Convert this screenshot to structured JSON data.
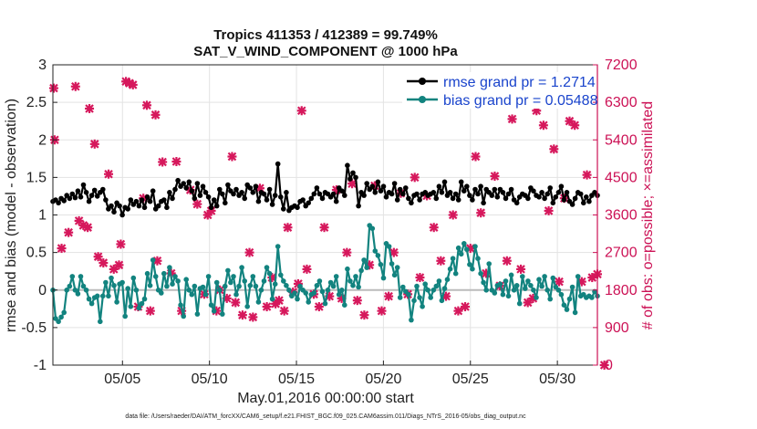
{
  "chart_data": {
    "type": "line",
    "title": "Tropics 411353 / 412389 = 99.749%",
    "subtitle": "SAT_V_WIND_COMPONENT @ 1000 hPa",
    "xlabel": "May.01,2016 00:00:00 start",
    "ylabel": "rmse and bias (model - observation)",
    "ylabel_right": "# of obs: o=possible; ×=assimilated",
    "footer": "data file: /Users/raeder/DAI/ATM_forcXX/CAM6_setup/f.e21.FHIST_BGC.f09_025.CAM6assim.011/Diags_NTrS_2016-05/obs_diag_output.nc",
    "ylim": [
      -1,
      3
    ],
    "ylim_right": [
      0,
      7200
    ],
    "xlim": [
      1,
      32.3
    ],
    "grid": true,
    "legend_position": "top-right",
    "x_ticks": [
      {
        "x": 5,
        "label": "05/05"
      },
      {
        "x": 10,
        "label": "05/10"
      },
      {
        "x": 15,
        "label": "05/15"
      },
      {
        "x": 20,
        "label": "05/20"
      },
      {
        "x": 25,
        "label": "05/25"
      },
      {
        "x": 30,
        "label": "05/30"
      }
    ],
    "y_ticks": [
      -1,
      -0.5,
      0,
      0.5,
      1,
      1.5,
      2,
      2.5,
      3
    ],
    "y_ticks_right": [
      0,
      900,
      1800,
      2700,
      3600,
      4500,
      5400,
      6300,
      7200
    ],
    "colors": {
      "rmse": "#000000",
      "bias": "#12837f",
      "obs": "#d6185c",
      "zero_line": "#bbbbbb",
      "right_axis": "#cc1155"
    },
    "series": [
      {
        "name": "rmse grand pr = 1.2714",
        "color": "#000000",
        "values": [
          1.18,
          1.2,
          1.16,
          1.22,
          1.19,
          1.26,
          1.22,
          1.28,
          1.23,
          1.32,
          1.24,
          1.4,
          1.3,
          1.18,
          1.26,
          1.33,
          1.25,
          1.3,
          1.34,
          1.2,
          1.08,
          1.12,
          1.04,
          1.16,
          1.12,
          1.0,
          1.1,
          1.08,
          1.2,
          1.14,
          1.18,
          1.12,
          1.2,
          1.1,
          1.24,
          1.18,
          1.32,
          1.08,
          1.12,
          1.18,
          1.2,
          1.1,
          1.3,
          1.22,
          1.34,
          1.46,
          1.38,
          1.42,
          1.36,
          1.44,
          1.32,
          1.22,
          1.42,
          1.26,
          1.38,
          1.3,
          1.24,
          1.1,
          1.2,
          1.12,
          1.34,
          1.28,
          1.16,
          1.4,
          1.32,
          1.28,
          1.34,
          1.26,
          1.3,
          1.22,
          1.4,
          1.36,
          1.3,
          1.38,
          1.18,
          1.3,
          1.28,
          1.2,
          1.34,
          1.14,
          1.26,
          1.68,
          1.24,
          1.08,
          1.3,
          1.06,
          1.1,
          1.12,
          1.1,
          1.18,
          1.2,
          1.12,
          1.16,
          1.22,
          1.28,
          1.36,
          1.28,
          1.22,
          1.3,
          1.28,
          1.24,
          1.28,
          1.18,
          1.36,
          1.32,
          1.26,
          1.66,
          1.48,
          1.56,
          1.5,
          1.12,
          1.3,
          1.26,
          1.42,
          1.34,
          1.38,
          1.3,
          1.44,
          1.32,
          1.38,
          1.24,
          1.3,
          1.28,
          1.42,
          1.2,
          1.34,
          1.28,
          1.36,
          1.22,
          1.16,
          1.26,
          1.28,
          1.2,
          1.28,
          1.3,
          1.26,
          1.28,
          1.3,
          1.22,
          1.38,
          1.3,
          1.44,
          1.26,
          1.3,
          1.22,
          1.28,
          1.2,
          1.44,
          1.32,
          1.38,
          1.26,
          1.2,
          1.34,
          1.28,
          1.38,
          1.16,
          1.34,
          1.3,
          1.26,
          1.34,
          1.24,
          1.34,
          1.3,
          1.22,
          1.28,
          1.34,
          1.2,
          1.16,
          1.24,
          1.28,
          1.26,
          1.22,
          1.36,
          1.32,
          1.26,
          1.24,
          1.3,
          1.22,
          1.28,
          1.36,
          1.16,
          1.24,
          1.3,
          1.38,
          1.2,
          1.3,
          1.18,
          1.14,
          1.22,
          1.3,
          1.28,
          1.16,
          1.24,
          1.18,
          1.26,
          1.3,
          1.26
        ]
      },
      {
        "name": "bias grand pr = 0.05488",
        "color": "#12837f",
        "values": [
          0.0,
          -0.38,
          -0.42,
          -0.36,
          -0.3,
          0.0,
          0.05,
          0.18,
          0.0,
          -0.05,
          0.18,
          0.05,
          0.0,
          -0.12,
          -0.18,
          -0.1,
          -0.08,
          -0.42,
          -0.08,
          0.1,
          -0.08,
          0.16,
          0.06,
          -0.16,
          0.08,
          0.1,
          -0.35,
          0.02,
          -0.22,
          0.16,
          0.0,
          -0.24,
          -0.18,
          -0.12,
          0.22,
          0.06,
          0.4,
          0.18,
          0.0,
          -0.04,
          0.22,
          0.05,
          0.3,
          0.08,
          0.18,
          0.12,
          -0.2,
          -0.35,
          0.14,
          0.0,
          -0.06,
          0.05,
          -0.32,
          0.02,
          0.04,
          -0.06,
          0.18,
          -0.2,
          -0.28,
          0.1,
          0.0,
          -0.32,
          0.05,
          0.26,
          0.1,
          0.18,
          -0.06,
          0.05,
          0.3,
          0.12,
          -0.22,
          0.06,
          0.18,
          0.05,
          -0.16,
          0.0,
          0.12,
          0.3,
          0.22,
          -0.12,
          0.08,
          0.58,
          0.2,
          0.12,
          0.06,
          0.0,
          -0.08,
          -0.04,
          -0.12,
          0.05,
          0.0,
          -0.04,
          -0.16,
          -0.06,
          -0.04,
          0.06,
          0.12,
          -0.02,
          -0.18,
          0.0,
          0.1,
          0.05,
          0.18,
          -0.06,
          0.0,
          -0.2,
          0.28,
          0.12,
          0.06,
          0.18,
          0.04,
          0.26,
          0.4,
          0.3,
          0.86,
          0.82,
          0.52,
          0.46,
          0.34,
          0.16,
          0.62,
          0.58,
          0.35,
          0.2,
          0.3,
          -0.1,
          0.04,
          -0.02,
          -0.06,
          -0.4,
          -0.14,
          0.05,
          -0.1,
          -0.22,
          0.08,
          0.0,
          -0.1,
          0.0,
          0.05,
          0.12,
          -0.14,
          0.02,
          0.14,
          0.28,
          0.42,
          0.22,
          0.56,
          0.48,
          0.62,
          0.54,
          0.34,
          0.28,
          0.58,
          0.42,
          0.22,
          0.1,
          0.0,
          0.35,
          0.0,
          -0.04,
          0.06,
          0.08,
          -0.06,
          0.12,
          -0.08,
          0.2,
          0.0,
          0.06,
          -0.18,
          0.18,
          0.02,
          0.12,
          0.06,
          0.0,
          -0.1,
          0.14,
          0.05,
          0.18,
          0.0,
          -0.12,
          0.16,
          0.04,
          0.0,
          -0.06,
          -0.2,
          -0.26,
          -0.12,
          0.04,
          -0.3,
          0.18,
          -0.08,
          -0.06,
          -0.1,
          -0.08,
          -0.1,
          -0.02,
          -0.08
        ]
      }
    ],
    "obs_points": [
      [
        1.05,
        6640
      ],
      [
        1.1,
        5400
      ],
      [
        1.5,
        2800
      ],
      [
        1.9,
        3180
      ],
      [
        2.3,
        6680
      ],
      [
        2.5,
        3460
      ],
      [
        2.75,
        3350
      ],
      [
        3,
        3300
      ],
      [
        3.1,
        6150
      ],
      [
        3.4,
        5300
      ],
      [
        3.6,
        2600
      ],
      [
        3.9,
        2450
      ],
      [
        4.2,
        4580
      ],
      [
        4.5,
        2300
      ],
      [
        4.8,
        2400
      ],
      [
        4.9,
        2900
      ],
      [
        5.2,
        6800
      ],
      [
        5.4,
        6760
      ],
      [
        5.6,
        6720
      ],
      [
        5.9,
        1400
      ],
      [
        6.2,
        4000
      ],
      [
        6.4,
        6230
      ],
      [
        6.6,
        1300
      ],
      [
        6.9,
        6000
      ],
      [
        7,
        2500
      ],
      [
        7.3,
        4870
      ],
      [
        7.8,
        2200
      ],
      [
        8.1,
        4880
      ],
      [
        8.4,
        1300
      ],
      [
        8.9,
        4200
      ],
      [
        9.3,
        3860
      ],
      [
        9.7,
        1700
      ],
      [
        9.9,
        3600
      ],
      [
        10.1,
        3700
      ],
      [
        10.4,
        1300
      ],
      [
        10.6,
        1800
      ],
      [
        11,
        1600
      ],
      [
        11.3,
        5000
      ],
      [
        11.5,
        1500
      ],
      [
        11.9,
        1200
      ],
      [
        12.3,
        2700
      ],
      [
        12.5,
        1150
      ],
      [
        12.9,
        4240
      ],
      [
        13.3,
        1400
      ],
      [
        13.6,
        2100
      ],
      [
        13.8,
        1470
      ],
      [
        14,
        1550
      ],
      [
        14.3,
        1300
      ],
      [
        14.5,
        3300
      ],
      [
        14.8,
        1750
      ],
      [
        15.1,
        1950
      ],
      [
        15.3,
        6100
      ],
      [
        15.6,
        2300
      ],
      [
        16,
        1700
      ],
      [
        16.3,
        1400
      ],
      [
        16.6,
        3300
      ],
      [
        16.9,
        1650
      ],
      [
        17.3,
        4200
      ],
      [
        17.6,
        1600
      ],
      [
        17.9,
        2700
      ],
      [
        18.2,
        4350
      ],
      [
        18.5,
        1550
      ],
      [
        18.9,
        1200
      ],
      [
        19.2,
        2400
      ],
      [
        19.5,
        4300
      ],
      [
        19.9,
        1300
      ],
      [
        20.3,
        1650
      ],
      [
        20.6,
        2700
      ],
      [
        21,
        4120
      ],
      [
        21.4,
        1700
      ],
      [
        21.8,
        4500
      ],
      [
        22.1,
        2100
      ],
      [
        22.5,
        4060
      ],
      [
        22.9,
        3300
      ],
      [
        23.3,
        2500
      ],
      [
        23.6,
        1650
      ],
      [
        24,
        3600
      ],
      [
        24.3,
        1300
      ],
      [
        24.7,
        1400
      ],
      [
        25,
        2800
      ],
      [
        25.3,
        5000
      ],
      [
        25.6,
        3650
      ],
      [
        25.9,
        2200
      ],
      [
        26.4,
        4530
      ],
      [
        26.7,
        1900
      ],
      [
        27.1,
        2500
      ],
      [
        27.4,
        5900
      ],
      [
        27.9,
        2300
      ],
      [
        28.3,
        1500
      ],
      [
        28.6,
        1600
      ],
      [
        28.8,
        6100
      ],
      [
        29.2,
        5750
      ],
      [
        29.5,
        3700
      ],
      [
        29.8,
        5180
      ],
      [
        30.1,
        2000
      ],
      [
        30.4,
        4000
      ],
      [
        30.7,
        5850
      ],
      [
        31,
        5750
      ],
      [
        31.4,
        2000
      ],
      [
        31.7,
        4560
      ],
      [
        32,
        2100
      ],
      [
        32.3,
        2180
      ],
      [
        32.7,
        0
      ]
    ]
  }
}
